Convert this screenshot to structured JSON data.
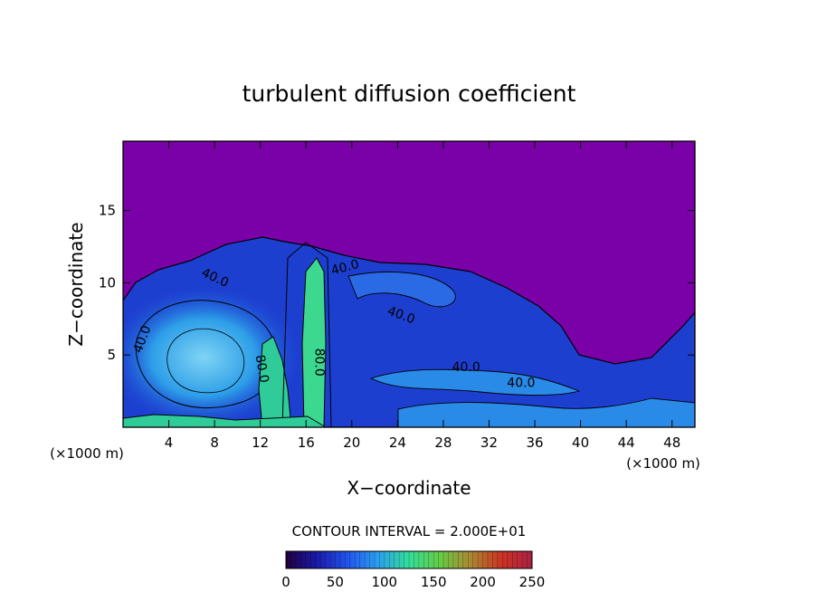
{
  "chart_data": {
    "type": "heatmap",
    "title": "turbulent diffusion coefficient",
    "xlabel": "X−coordinate",
    "ylabel": "Z−coordinate",
    "x_unit_left": "(×1000 m)",
    "x_unit_right": "(×1000 m)",
    "xlim": [
      0,
      50
    ],
    "ylim": [
      0,
      19.8
    ],
    "x_ticks": [
      4,
      8,
      12,
      16,
      20,
      24,
      28,
      32,
      36,
      40,
      44,
      48
    ],
    "x_tick_labels": [
      "4",
      "8",
      "12",
      "16",
      "20",
      "24",
      "28",
      "32",
      "36",
      "40",
      "44",
      "48"
    ],
    "y_ticks": [
      5,
      10,
      15
    ],
    "y_tick_labels": [
      "5",
      "10",
      "15"
    ],
    "contour_interval_text": "CONTOUR INTERVAL = 2.000E+01",
    "contour_labels": [
      {
        "text": "40.0",
        "x": 2.0,
        "y": 6.0,
        "angle": -70
      },
      {
        "text": "40.0",
        "x": 7.9,
        "y": 10.1,
        "angle": 25
      },
      {
        "text": "40.0",
        "x": 19.5,
        "y": 10.8,
        "angle": -15
      },
      {
        "text": "40.0",
        "x": 24.2,
        "y": 7.5,
        "angle": 20
      },
      {
        "text": "40.0",
        "x": 30.0,
        "y": 3.9,
        "angle": 0
      },
      {
        "text": "40.0",
        "x": 34.8,
        "y": 2.8,
        "angle": 0
      },
      {
        "text": "80.0",
        "x": 11.8,
        "y": 4.0,
        "angle": 80
      },
      {
        "text": "80.0",
        "x": 16.8,
        "y": 4.5,
        "angle": 90
      }
    ],
    "colorbar": {
      "min": 0,
      "max": 250,
      "ticks": [
        0,
        50,
        100,
        150,
        200,
        250
      ],
      "tick_labels": [
        "0",
        "50",
        "100",
        "150",
        "200",
        "250"
      ],
      "stops": [
        "#200040",
        "#1a1aa8",
        "#2255ee",
        "#2aa0ee",
        "#33dd99",
        "#66cc44",
        "#aa8833",
        "#cc3322",
        "#aa2244"
      ]
    },
    "background_color": "#7a00a8",
    "grid": false,
    "legend": "colorbar-bottom"
  }
}
